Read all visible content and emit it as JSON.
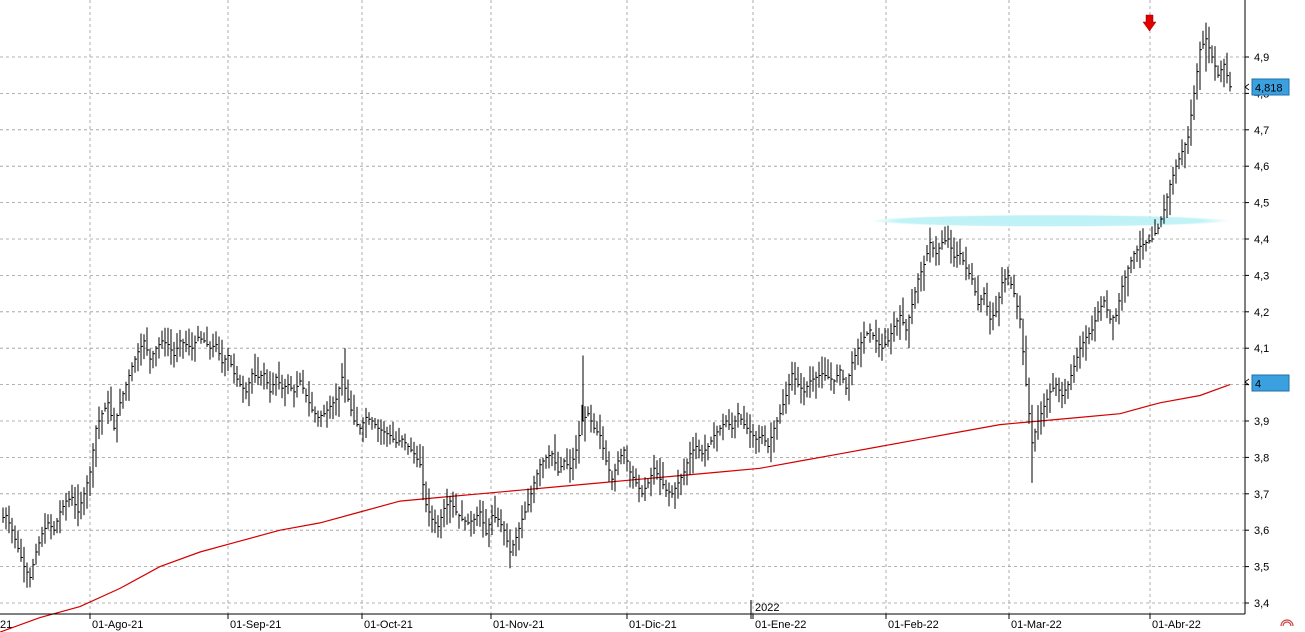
{
  "chart_data": {
    "type": "ohlc",
    "title": "",
    "xlabel": "",
    "ylabel": "",
    "ylim": [
      3.37,
      5.0
    ],
    "grid": true,
    "y_ticks": [
      "3,4",
      "3,5",
      "3,6",
      "3,7",
      "3,8",
      "3,9",
      "4",
      "4,1",
      "4,2",
      "4,3",
      "4,4",
      "4,5",
      "4,6",
      "4,7",
      "4,8",
      "4,9"
    ],
    "x_ticks": [
      "21",
      "01-Ago-21",
      "01-Sep-21",
      "01-Oct-21",
      "01-Nov-21",
      "01-Dic-21",
      "01-Ene-22",
      "01-Feb-22",
      "01-Mar-22",
      "01-Abr-22"
    ],
    "year_label": "2022",
    "last_price": "4,818",
    "moving_average_value": "4",
    "colors": {
      "bars": "#000000",
      "moving_average": "#d40000",
      "grid": "#9a9a9a",
      "badge": "#3aa0e0",
      "resistance_band": "#bdf2f6",
      "arrow": "#e00000"
    },
    "resistance_level": 4.45,
    "close_path": [
      [
        0,
        3.63
      ],
      [
        6,
        3.64
      ],
      [
        12,
        3.6
      ],
      [
        18,
        3.55
      ],
      [
        24,
        3.5
      ],
      [
        30,
        3.47
      ],
      [
        36,
        3.54
      ],
      [
        42,
        3.59
      ],
      [
        48,
        3.62
      ],
      [
        54,
        3.6
      ],
      [
        60,
        3.65
      ],
      [
        66,
        3.68
      ],
      [
        72,
        3.69
      ],
      [
        78,
        3.65
      ],
      [
        84,
        3.7
      ],
      [
        90,
        3.76
      ],
      [
        96,
        3.88
      ],
      [
        102,
        3.92
      ],
      [
        108,
        3.95
      ],
      [
        114,
        3.88
      ],
      [
        120,
        3.95
      ],
      [
        126,
        4.0
      ],
      [
        132,
        4.05
      ],
      [
        138,
        4.09
      ],
      [
        144,
        4.12
      ],
      [
        150,
        4.07
      ],
      [
        156,
        4.1
      ],
      [
        162,
        4.12
      ],
      [
        168,
        4.11
      ],
      [
        174,
        4.08
      ],
      [
        180,
        4.12
      ],
      [
        186,
        4.11
      ],
      [
        192,
        4.1
      ],
      [
        198,
        4.13
      ],
      [
        204,
        4.12
      ],
      [
        210,
        4.1
      ],
      [
        216,
        4.11
      ],
      [
        222,
        4.06
      ],
      [
        228,
        4.08
      ],
      [
        234,
        4.03
      ],
      [
        240,
        4.0
      ],
      [
        246,
        3.98
      ],
      [
        252,
        4.03
      ],
      [
        258,
        4.02
      ],
      [
        264,
        4.03
      ],
      [
        270,
        3.98
      ],
      [
        276,
        4.02
      ],
      [
        282,
        3.99
      ],
      [
        288,
        4.0
      ],
      [
        294,
        3.98
      ],
      [
        300,
        4.01
      ],
      [
        306,
        3.97
      ],
      [
        312,
        3.93
      ],
      [
        318,
        3.91
      ],
      [
        324,
        3.92
      ],
      [
        330,
        3.94
      ],
      [
        336,
        3.96
      ],
      [
        342,
        4.02
      ],
      [
        348,
        3.96
      ],
      [
        354,
        3.9
      ],
      [
        360,
        3.88
      ],
      [
        366,
        3.91
      ],
      [
        372,
        3.9
      ],
      [
        378,
        3.88
      ],
      [
        384,
        3.87
      ],
      [
        390,
        3.86
      ],
      [
        396,
        3.84
      ],
      [
        402,
        3.85
      ],
      [
        408,
        3.83
      ],
      [
        414,
        3.81
      ],
      [
        420,
        3.78
      ],
      [
        426,
        3.67
      ],
      [
        432,
        3.63
      ],
      [
        438,
        3.61
      ],
      [
        444,
        3.66
      ],
      [
        450,
        3.68
      ],
      [
        456,
        3.65
      ],
      [
        462,
        3.63
      ],
      [
        468,
        3.62
      ],
      [
        474,
        3.63
      ],
      [
        480,
        3.65
      ],
      [
        486,
        3.59
      ],
      [
        492,
        3.64
      ],
      [
        498,
        3.63
      ],
      [
        504,
        3.6
      ],
      [
        510,
        3.54
      ],
      [
        516,
        3.58
      ],
      [
        522,
        3.63
      ],
      [
        528,
        3.67
      ],
      [
        534,
        3.73
      ],
      [
        540,
        3.78
      ],
      [
        546,
        3.8
      ],
      [
        552,
        3.81
      ],
      [
        558,
        3.76
      ],
      [
        564,
        3.79
      ],
      [
        570,
        3.77
      ],
      [
        576,
        3.82
      ],
      [
        582,
        3.9
      ],
      [
        588,
        3.92
      ],
      [
        594,
        3.88
      ],
      [
        600,
        3.86
      ],
      [
        606,
        3.79
      ],
      [
        612,
        3.74
      ],
      [
        618,
        3.79
      ],
      [
        624,
        3.82
      ],
      [
        630,
        3.76
      ],
      [
        636,
        3.73
      ],
      [
        642,
        3.7
      ],
      [
        648,
        3.73
      ],
      [
        654,
        3.77
      ],
      [
        660,
        3.74
      ],
      [
        666,
        3.71
      ],
      [
        672,
        3.7
      ],
      [
        678,
        3.73
      ],
      [
        684,
        3.76
      ],
      [
        690,
        3.81
      ],
      [
        696,
        3.83
      ],
      [
        702,
        3.81
      ],
      [
        708,
        3.83
      ],
      [
        714,
        3.86
      ],
      [
        720,
        3.88
      ],
      [
        726,
        3.9
      ],
      [
        732,
        3.88
      ],
      [
        738,
        3.92
      ],
      [
        744,
        3.89
      ],
      [
        750,
        3.87
      ],
      [
        756,
        3.85
      ],
      [
        762,
        3.86
      ],
      [
        768,
        3.83
      ],
      [
        774,
        3.88
      ],
      [
        780,
        3.92
      ],
      [
        786,
        3.97
      ],
      [
        792,
        4.03
      ],
      [
        798,
        4.0
      ],
      [
        804,
        3.98
      ],
      [
        810,
        4.01
      ],
      [
        816,
        4.02
      ],
      [
        822,
        4.03
      ],
      [
        828,
        4.02
      ],
      [
        834,
        4.01
      ],
      [
        840,
        4.04
      ],
      [
        846,
        3.99
      ],
      [
        852,
        4.06
      ],
      [
        858,
        4.1
      ],
      [
        864,
        4.13
      ],
      [
        870,
        4.15
      ],
      [
        876,
        4.12
      ],
      [
        882,
        4.1
      ],
      [
        888,
        4.12
      ],
      [
        894,
        4.16
      ],
      [
        900,
        4.19
      ],
      [
        906,
        4.15
      ],
      [
        912,
        4.22
      ],
      [
        918,
        4.29
      ],
      [
        924,
        4.33
      ],
      [
        930,
        4.39
      ],
      [
        936,
        4.36
      ],
      [
        942,
        4.39
      ],
      [
        948,
        4.4
      ],
      [
        954,
        4.35
      ],
      [
        960,
        4.36
      ],
      [
        966,
        4.32
      ],
      [
        972,
        4.29
      ],
      [
        978,
        4.22
      ],
      [
        984,
        4.25
      ],
      [
        990,
        4.18
      ],
      [
        996,
        4.2
      ],
      [
        1002,
        4.28
      ],
      [
        1008,
        4.3
      ],
      [
        1014,
        4.25
      ],
      [
        1020,
        4.18
      ],
      [
        1026,
        4.0
      ],
      [
        1032,
        3.84
      ],
      [
        1038,
        3.9
      ],
      [
        1044,
        3.94
      ],
      [
        1050,
        3.98
      ],
      [
        1056,
        4.0
      ],
      [
        1062,
        3.97
      ],
      [
        1068,
        4.0
      ],
      [
        1074,
        4.05
      ],
      [
        1080,
        4.1
      ],
      [
        1086,
        4.13
      ],
      [
        1092,
        4.15
      ],
      [
        1098,
        4.2
      ],
      [
        1104,
        4.23
      ],
      [
        1110,
        4.18
      ],
      [
        1116,
        4.19
      ],
      [
        1122,
        4.27
      ],
      [
        1128,
        4.32
      ],
      [
        1134,
        4.36
      ],
      [
        1140,
        4.38
      ],
      [
        1146,
        4.39
      ],
      [
        1152,
        4.4
      ],
      [
        1158,
        4.43
      ],
      [
        1164,
        4.48
      ],
      [
        1170,
        4.55
      ],
      [
        1176,
        4.6
      ],
      [
        1182,
        4.64
      ],
      [
        1188,
        4.68
      ],
      [
        1194,
        4.8
      ],
      [
        1200,
        4.92
      ],
      [
        1206,
        4.95
      ],
      [
        1212,
        4.9
      ],
      [
        1218,
        4.85
      ],
      [
        1224,
        4.88
      ],
      [
        1230,
        4.818
      ]
    ],
    "ma_path": [
      [
        0,
        3.32
      ],
      [
        40,
        3.36
      ],
      [
        80,
        3.39
      ],
      [
        120,
        3.44
      ],
      [
        160,
        3.5
      ],
      [
        200,
        3.54
      ],
      [
        240,
        3.57
      ],
      [
        280,
        3.6
      ],
      [
        320,
        3.62
      ],
      [
        360,
        3.65
      ],
      [
        400,
        3.68
      ],
      [
        440,
        3.69
      ],
      [
        480,
        3.7
      ],
      [
        520,
        3.71
      ],
      [
        560,
        3.72
      ],
      [
        600,
        3.73
      ],
      [
        640,
        3.74
      ],
      [
        680,
        3.75
      ],
      [
        720,
        3.76
      ],
      [
        760,
        3.77
      ],
      [
        800,
        3.79
      ],
      [
        840,
        3.81
      ],
      [
        880,
        3.83
      ],
      [
        920,
        3.85
      ],
      [
        960,
        3.87
      ],
      [
        1000,
        3.89
      ],
      [
        1040,
        3.9
      ],
      [
        1080,
        3.91
      ],
      [
        1120,
        3.92
      ],
      [
        1160,
        3.95
      ],
      [
        1200,
        3.97
      ],
      [
        1230,
        4.0
      ]
    ]
  }
}
